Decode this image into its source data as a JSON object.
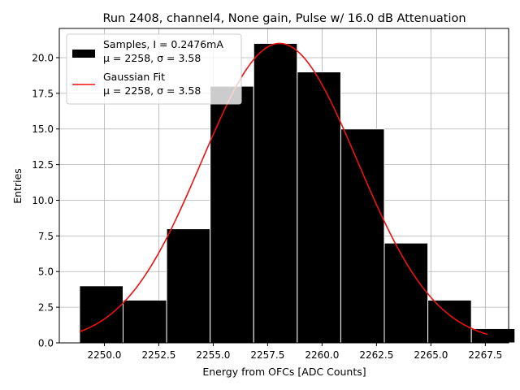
{
  "chart_data": {
    "type": "bar",
    "title": "Run 2408, channel4, None gain, Pulse w/ 16.0 dB Attenuation",
    "xlabel": "Energy from OFCs [ADC Counts]",
    "ylabel": "Entries",
    "xlim": [
      2247.93,
      2268.57
    ],
    "ylim": [
      0,
      22.05
    ],
    "grid": true,
    "legend_position": "top-left",
    "x_ticks": [
      2250.0,
      2252.5,
      2255.0,
      2257.5,
      2260.0,
      2262.5,
      2265.0,
      2267.5
    ],
    "x_tick_labels": [
      "2250.0",
      "2252.5",
      "2255.0",
      "2257.5",
      "2260.0",
      "2262.5",
      "2265.0",
      "2267.5"
    ],
    "y_ticks": [
      0.0,
      2.5,
      5.0,
      7.5,
      10.0,
      12.5,
      15.0,
      17.5,
      20.0
    ],
    "y_tick_labels": [
      "0.0",
      "2.5",
      "5.0",
      "7.5",
      "10.0",
      "12.5",
      "15.0",
      "17.5",
      "20.0"
    ],
    "histogram": {
      "name_line1": "Samples, I = 0.2476mA",
      "name_line2": "μ = 2258, σ = 3.58",
      "color": "#000000",
      "edgecolor": "#ffffff",
      "bin_edges": [
        2248.86,
        2250.86,
        2252.86,
        2254.86,
        2256.86,
        2258.86,
        2260.86,
        2262.86,
        2264.86,
        2266.86,
        2268.86
      ],
      "counts": [
        4,
        3,
        8,
        18,
        21,
        19,
        15,
        7,
        3,
        1
      ]
    },
    "fit": {
      "name_line1": "Gaussian Fit",
      "name_line2": "μ = 2258, σ = 3.58",
      "color": "#ee1111",
      "mu": 2258.05,
      "sigma": 3.58,
      "amplitude": 21.0,
      "x_range": [
        2248.86,
        2267.6
      ]
    }
  }
}
